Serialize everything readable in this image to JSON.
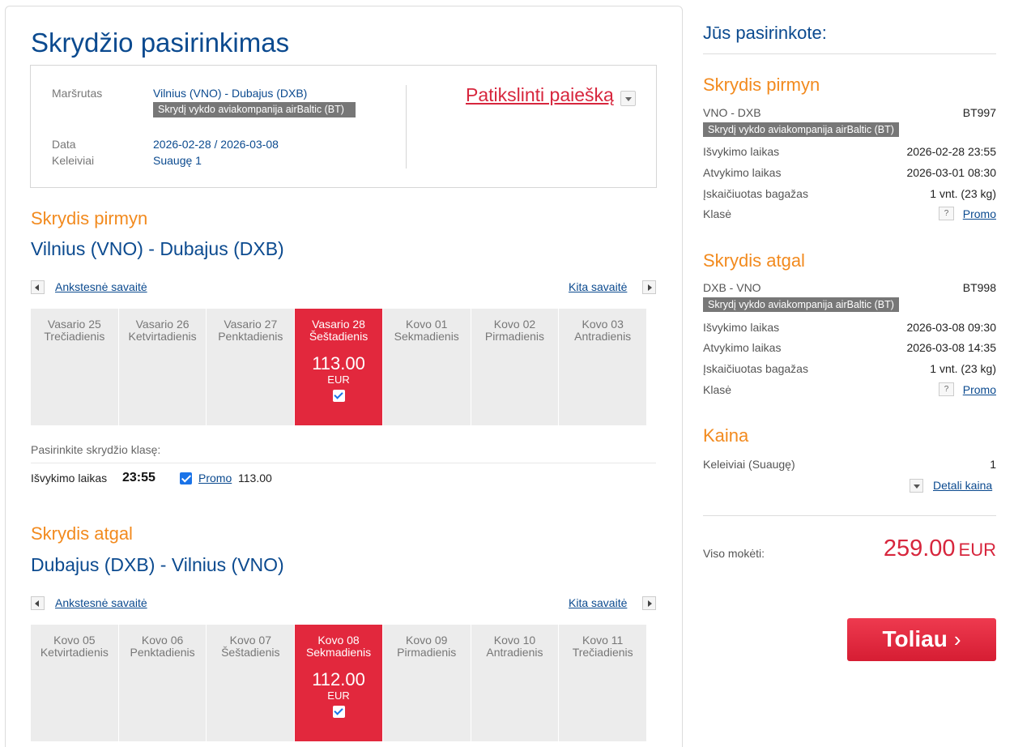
{
  "page_title": "Skrydžio pasirinkimas",
  "summary": {
    "route_label": "Maršrutas",
    "route_value": "Vilnius (VNO) - Dubajus (DXB)",
    "operator_badge": "Skrydį vykdo aviakompanija airBaltic (BT)",
    "date_label": "Data",
    "date_value": "2026-02-28 / 2026-03-08",
    "passengers_label": "Keleiviai",
    "passengers_value": "Suaugę 1",
    "refine_label": "Patikslinti paiešką"
  },
  "outbound": {
    "heading": "Skrydis pirmyn",
    "route": "Vilnius (VNO) - Dubajus (DXB)",
    "prev_week": "Ankstesnė savaitė",
    "next_week": "Kita savaitė",
    "days": [
      {
        "date": "Vasario 25",
        "weekday": "Trečiadienis"
      },
      {
        "date": "Vasario 26",
        "weekday": "Ketvirtadienis"
      },
      {
        "date": "Vasario 27",
        "weekday": "Penktadienis"
      },
      {
        "date": "Vasario 28",
        "weekday": "Šeštadienis",
        "price": "113.00",
        "currency": "EUR"
      },
      {
        "date": "Kovo 01",
        "weekday": "Sekmadienis"
      },
      {
        "date": "Kovo 02",
        "weekday": "Pirmadienis"
      },
      {
        "date": "Kovo 03",
        "weekday": "Antradienis"
      }
    ],
    "class_prompt": "Pasirinkite skrydžio klasę:",
    "departure_label": "Išvykimo laikas",
    "departure_time": "23:55",
    "fare_name": "Promo",
    "fare_price": "113.00"
  },
  "inbound": {
    "heading": "Skrydis atgal",
    "route": "Dubajus (DXB) - Vilnius (VNO)",
    "prev_week": "Ankstesnė savaitė",
    "next_week": "Kita savaitė",
    "days": [
      {
        "date": "Kovo 05",
        "weekday": "Ketvirtadienis"
      },
      {
        "date": "Kovo 06",
        "weekday": "Penktadienis"
      },
      {
        "date": "Kovo 07",
        "weekday": "Šeštadienis"
      },
      {
        "date": "Kovo 08",
        "weekday": "Sekmadienis",
        "price": "112.00",
        "currency": "EUR"
      },
      {
        "date": "Kovo 09",
        "weekday": "Pirmadienis"
      },
      {
        "date": "Kovo 10",
        "weekday": "Antradienis"
      },
      {
        "date": "Kovo 11",
        "weekday": "Trečiadienis"
      }
    ]
  },
  "sidebar": {
    "title": "Jūs pasirinkote:",
    "outbound": {
      "heading": "Skrydis pirmyn",
      "route": "VNO - DXB",
      "flight_no": "BT997",
      "operator_badge": "Skrydį vykdo aviakompanija airBaltic (BT)",
      "departure_label": "Išvykimo laikas",
      "departure_value": "2026-02-28 23:55",
      "arrival_label": "Atvykimo laikas",
      "arrival_value": "2026-03-01 08:30",
      "baggage_label": "Įskaičiuotas bagažas",
      "baggage_value": "1 vnt. (23 kg)",
      "class_label": "Klasė",
      "class_value": "Promo",
      "help": "?"
    },
    "inbound": {
      "heading": "Skrydis atgal",
      "route": "DXB - VNO",
      "flight_no": "BT998",
      "operator_badge": "Skrydį vykdo aviakompanija airBaltic (BT)",
      "departure_label": "Išvykimo laikas",
      "departure_value": "2026-03-08 09:30",
      "arrival_label": "Atvykimo laikas",
      "arrival_value": "2026-03-08 14:35",
      "baggage_label": "Įskaičiuotas bagažas",
      "baggage_value": "1 vnt. (23 kg)",
      "class_label": "Klasė",
      "class_value": "Promo",
      "help": "?"
    },
    "price": {
      "heading": "Kaina",
      "passengers_label": "Keleiviai (Suaugę)",
      "passengers_value": "1",
      "details_label": "Detali kaina",
      "total_label": "Viso mokėti:",
      "total_value": "259.00",
      "total_currency": "EUR"
    },
    "next_button": "Toliau",
    "next_chevron": "›"
  },
  "colors": {
    "brand_blue": "#0b4a8f",
    "accent_orange": "#f28a1e",
    "selected_red": "#e2283d"
  }
}
